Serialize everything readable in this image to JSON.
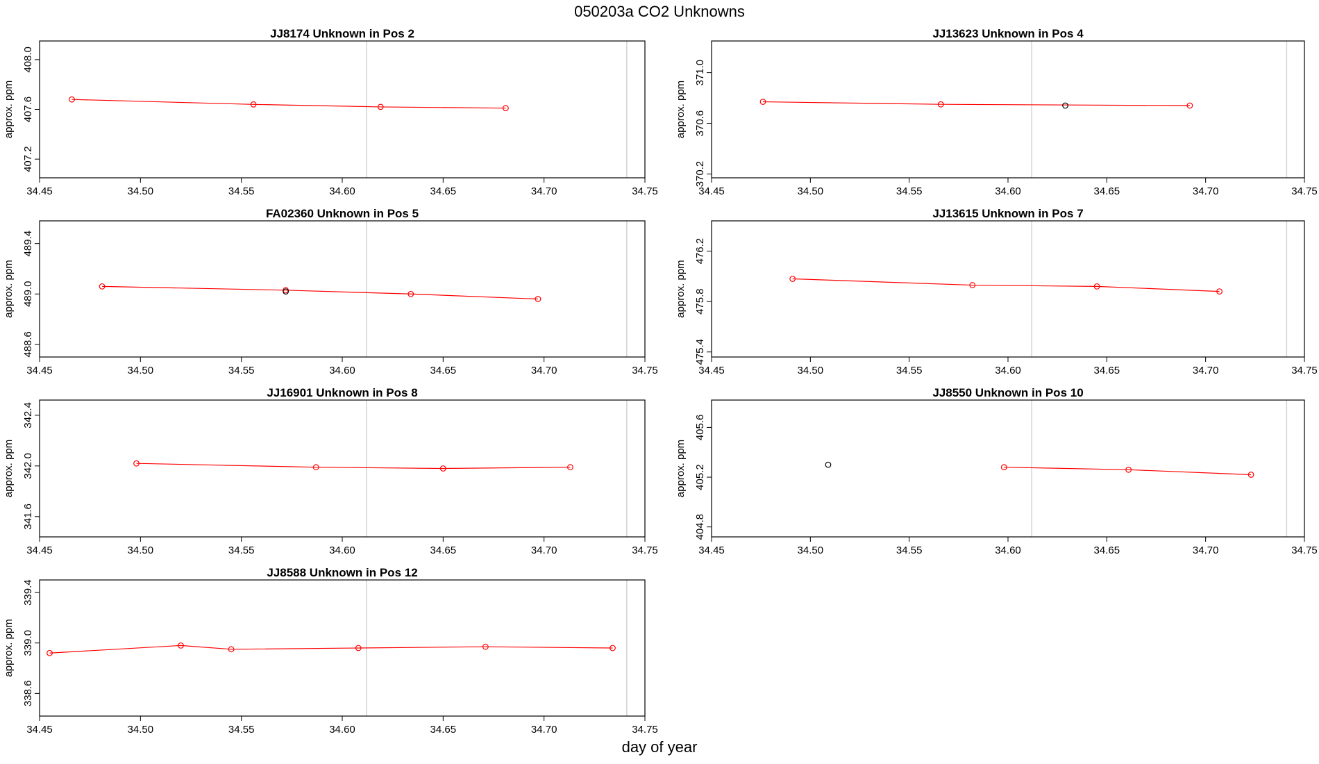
{
  "title": "050203a  CO2 Unknowns",
  "xlabel": "day of year",
  "chart_data": {
    "type": "line",
    "title": "050203a  CO2 Unknowns",
    "xlabel": "day of year",
    "xlim": [
      34.45,
      34.75
    ],
    "x_ticks": [
      "34.45",
      "34.50",
      "34.55",
      "34.60",
      "34.65",
      "34.70",
      "34.75"
    ],
    "reference_lines_x": [
      34.612,
      34.741
    ],
    "grid": false,
    "panels": [
      {
        "title": "JJ8174    Unknown in Pos 2",
        "ylabel": "approx. ppm",
        "ylim": [
          407.05,
          408.15
        ],
        "y_ticks": [
          "407.2",
          "407.6",
          "408.0"
        ],
        "series": [
          {
            "color": "#ff0000",
            "line": true,
            "x": [
              34.466,
              34.556,
              34.619,
              34.681
            ],
            "y": [
              407.68,
              407.64,
              407.62,
              407.61
            ]
          }
        ]
      },
      {
        "title": "JJ13623    Unknown in Pos 4",
        "ylabel": "approx. ppm",
        "ylim": [
          370.17,
          371.25
        ],
        "y_ticks": [
          "370.2",
          "370.6",
          "371.0"
        ],
        "series": [
          {
            "color": "#ff0000",
            "line": true,
            "x": [
              34.476,
              34.566,
              34.692
            ],
            "y": [
              370.77,
              370.75,
              370.74
            ]
          },
          {
            "color": "#000000",
            "line": false,
            "x": [
              34.629
            ],
            "y": [
              370.74
            ]
          }
        ]
      },
      {
        "title": "FA02360    Unknown in Pos 5",
        "ylabel": "approx. ppm",
        "ylim": [
          488.5,
          489.58
        ],
        "y_ticks": [
          "488.6",
          "489.0",
          "489.4"
        ],
        "series": [
          {
            "color": "#ff0000",
            "line": true,
            "x": [
              34.481,
              34.572,
              34.634,
              34.697
            ],
            "y": [
              489.06,
              489.03,
              489.0,
              488.96
            ]
          },
          {
            "color": "#000000",
            "line": false,
            "x": [
              34.572
            ],
            "y": [
              489.02
            ]
          }
        ]
      },
      {
        "title": "JJ13615    Unknown in Pos 7",
        "ylabel": "approx. ppm",
        "ylim": [
          475.36,
          476.44
        ],
        "y_ticks": [
          "475.4",
          "475.8",
          "476.2"
        ],
        "series": [
          {
            "color": "#ff0000",
            "line": true,
            "x": [
              34.491,
              34.582,
              34.645,
              34.707
            ],
            "y": [
              475.98,
              475.93,
              475.92,
              475.88
            ]
          }
        ]
      },
      {
        "title": "JJ16901    Unknown in Pos 8",
        "ylabel": "approx. ppm",
        "ylim": [
          341.44,
          342.52
        ],
        "y_ticks": [
          "341.6",
          "342.0",
          "342.4"
        ],
        "series": [
          {
            "color": "#ff0000",
            "line": true,
            "x": [
              34.498,
              34.587,
              34.65,
              34.713
            ],
            "y": [
              342.02,
              341.99,
              341.98,
              341.99
            ]
          }
        ]
      },
      {
        "title": "JJ8550    Unknown in Pos 10",
        "ylabel": "approx. ppm",
        "ylim": [
          404.72,
          405.82
        ],
        "y_ticks": [
          "404.8",
          "405.2",
          "405.6"
        ],
        "series": [
          {
            "color": "#000000",
            "line": false,
            "x": [
              34.509
            ],
            "y": [
              405.3
            ]
          },
          {
            "color": "#ff0000",
            "line": true,
            "x": [
              34.598,
              34.661,
              34.723
            ],
            "y": [
              405.28,
              405.26,
              405.22
            ]
          }
        ]
      },
      {
        "title": "JJ8588    Unknown in Pos 12",
        "ylabel": "approx. ppm",
        "ylim": [
          338.42,
          339.5
        ],
        "y_ticks": [
          "338.6",
          "339.0",
          "339.4"
        ],
        "series": [
          {
            "color": "#ff0000",
            "line": true,
            "x": [
              34.455,
              34.52,
              34.545,
              34.608,
              34.671,
              34.734
            ],
            "y": [
              338.92,
              338.98,
              338.95,
              338.96,
              338.97,
              338.96
            ]
          }
        ]
      }
    ]
  }
}
